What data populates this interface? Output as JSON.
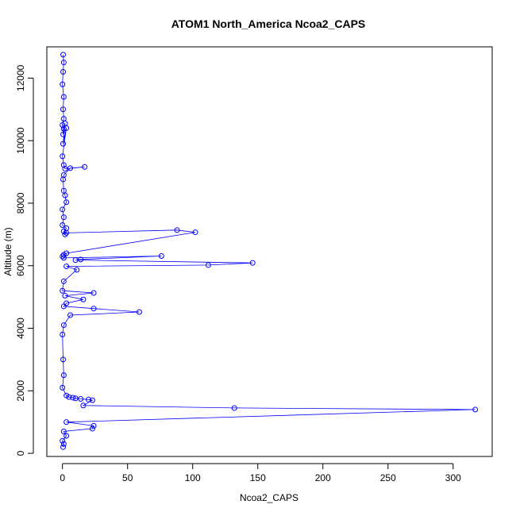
{
  "chart_data": {
    "type": "scatter",
    "title": "ATOM1 North_America Ncoa2_CAPS",
    "xlabel": "Ncoa2_CAPS",
    "ylabel": "Altitude (m)",
    "xlim": [
      -12,
      330
    ],
    "ylim": [
      -100,
      13000
    ],
    "x_ticks": [
      0,
      50,
      100,
      150,
      200,
      250,
      300
    ],
    "y_ticks": [
      0,
      2000,
      4000,
      6000,
      8000,
      10000,
      12000
    ],
    "grid": false,
    "legend": "none",
    "series": [
      {
        "color": "#0000ff",
        "x": [
          0.5,
          1,
          0.5,
          0,
          1,
          0.5,
          1,
          0,
          0.5,
          1,
          2,
          0.5,
          3,
          0,
          1,
          2,
          17,
          6,
          1,
          0.5,
          1,
          2,
          3,
          0,
          1,
          0,
          3,
          1,
          2,
          3,
          88,
          102,
          3,
          1,
          0,
          1,
          76,
          14,
          10,
          146,
          112,
          3,
          11,
          1,
          0,
          24,
          2,
          16,
          3,
          1,
          24,
          59,
          6,
          1,
          0,
          0.5,
          1,
          0,
          3,
          5,
          8,
          10,
          14,
          20,
          23,
          16,
          132,
          317,
          3,
          24,
          23,
          1,
          3,
          0,
          1,
          0.5
        ],
        "y": [
          12750,
          12500,
          12200,
          11800,
          11400,
          11000,
          10700,
          10500,
          10200,
          10380,
          10550,
          9900,
          10400,
          9500,
          9220,
          9100,
          9160,
          9120,
          8900,
          8760,
          8400,
          8250,
          8030,
          7800,
          7550,
          7300,
          7200,
          7100,
          7000,
          7050,
          7140,
          7070,
          6400,
          6350,
          6300,
          6250,
          6310,
          6200,
          6180,
          6090,
          6020,
          5980,
          5870,
          5500,
          5200,
          5130,
          5040,
          4920,
          4800,
          4700,
          4630,
          4520,
          4420,
          4100,
          3800,
          3000,
          2500,
          2100,
          1850,
          1800,
          1780,
          1760,
          1740,
          1720,
          1700,
          1530,
          1450,
          1400,
          1000,
          880,
          790,
          700,
          560,
          400,
          300,
          200
        ]
      }
    ]
  }
}
